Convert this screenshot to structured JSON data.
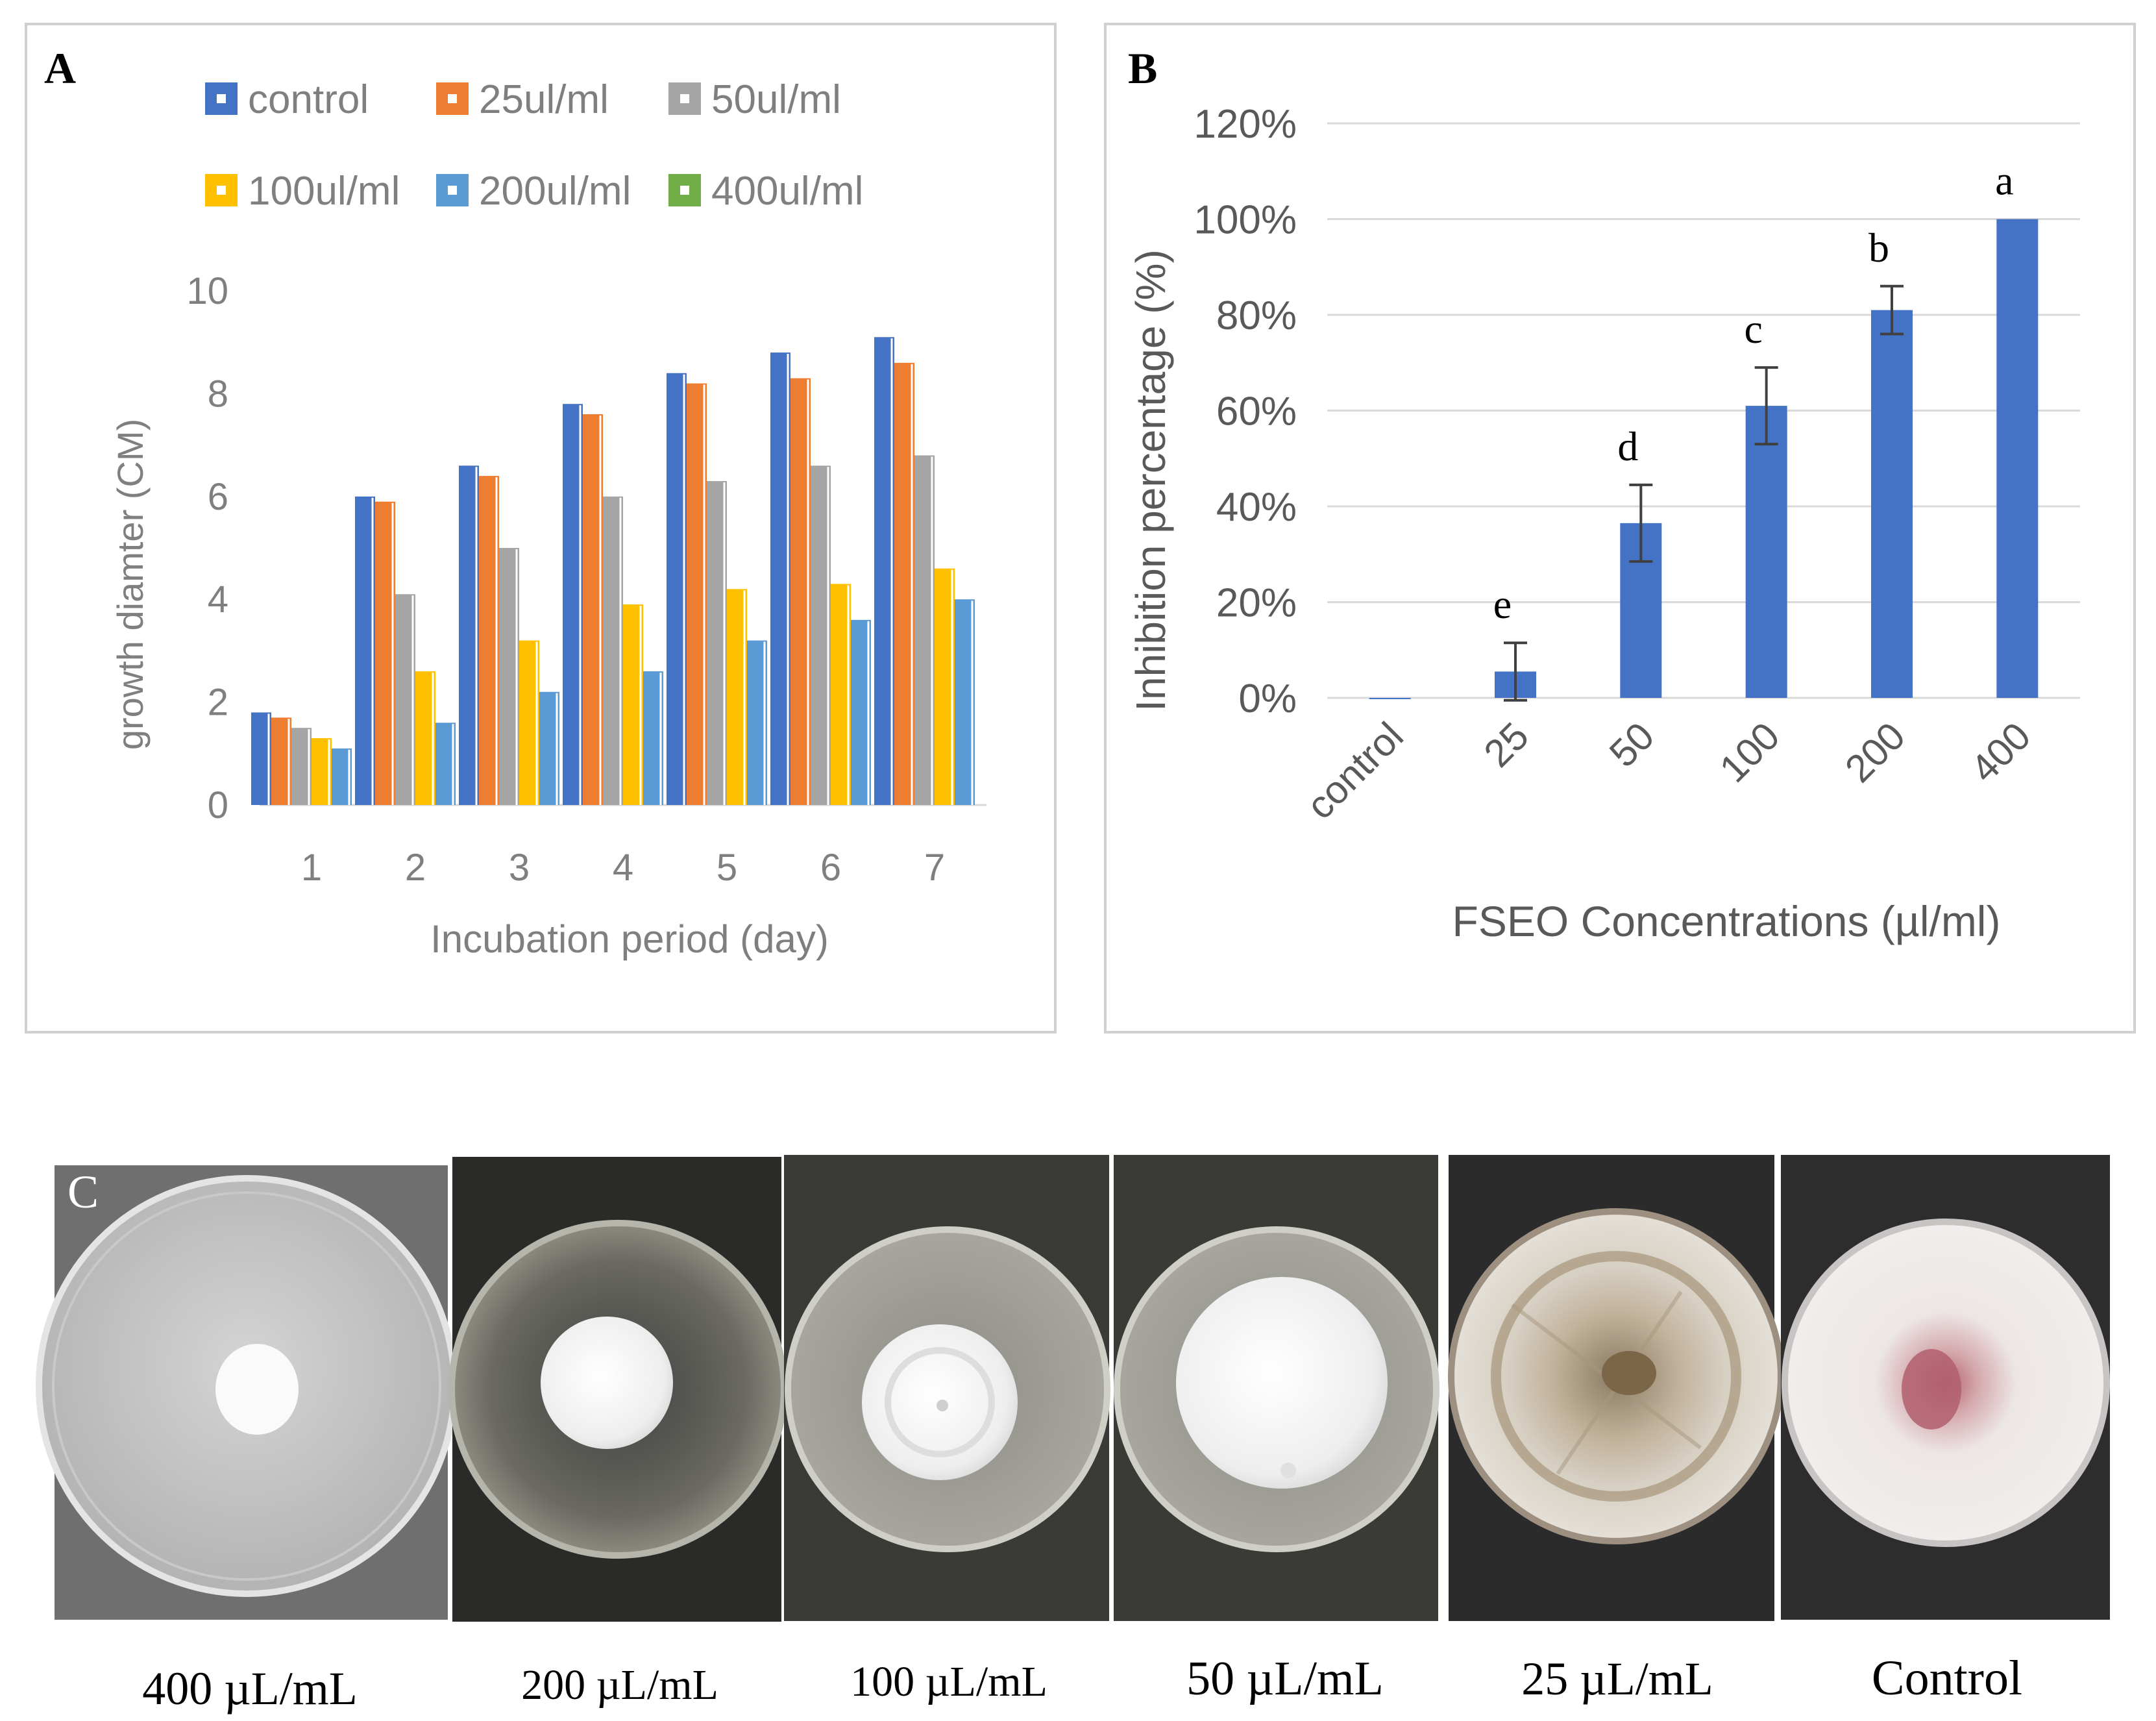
{
  "panel_a": {
    "letter": "A",
    "chart_data": {
      "type": "bar",
      "title": "",
      "xlabel": "Incubation period (day)",
      "ylabel": "growth diamter (CM)",
      "categories": [
        "1",
        "2",
        "3",
        "4",
        "5",
        "6",
        "7"
      ],
      "yticks": [
        "0",
        "2",
        "4",
        "6",
        "8",
        "10"
      ],
      "ylim": [
        0,
        10
      ],
      "legend_position": "top",
      "series": [
        {
          "name": "control",
          "color": "#4472C4",
          "values": [
            1.8,
            6.0,
            6.6,
            7.8,
            8.4,
            8.8,
            9.1
          ]
        },
        {
          "name": "25ul/ml",
          "color": "#ED7D31",
          "values": [
            1.7,
            5.9,
            6.4,
            7.6,
            8.2,
            8.3,
            8.6
          ]
        },
        {
          "name": "50ul/ml",
          "color": "#A5A5A5",
          "values": [
            1.5,
            4.1,
            5.0,
            6.0,
            6.3,
            6.6,
            6.8
          ]
        },
        {
          "name": "100ul/ml",
          "color": "#FFC000",
          "values": [
            1.3,
            2.6,
            3.2,
            3.9,
            4.2,
            4.3,
            4.6
          ]
        },
        {
          "name": "200ul/ml",
          "color": "#5B9BD5",
          "values": [
            1.1,
            1.6,
            2.2,
            2.6,
            3.2,
            3.6,
            4.0
          ]
        },
        {
          "name": "400ul/ml",
          "color": "#70AD47",
          "values": [
            0,
            0,
            0,
            0,
            0,
            0,
            0
          ]
        }
      ]
    }
  },
  "panel_b": {
    "letter": "B",
    "chart_data": {
      "type": "bar",
      "title": "",
      "xlabel": "FSEO Concentrations (µl/ml)",
      "ylabel": "Inhibition percentage (%)",
      "categories": [
        "control",
        "25",
        "50",
        "100",
        "200",
        "400"
      ],
      "yticks": [
        "0%",
        "20%",
        "40%",
        "60%",
        "80%",
        "100%",
        "120%"
      ],
      "ylim": [
        0,
        120
      ],
      "bar_color": "#4472C4",
      "values": [
        0,
        5.5,
        36.5,
        61,
        81,
        100
      ],
      "errors": [
        0,
        6,
        8,
        8,
        5,
        0
      ],
      "significance_letters": [
        "",
        "e",
        "d",
        "c",
        "b",
        "a"
      ]
    }
  },
  "panel_c": {
    "letter": "C",
    "plates": [
      {
        "label": "400 µL/mL",
        "style": "small-colony"
      },
      {
        "label": "200 µL/mL",
        "style": "medium-colony"
      },
      {
        "label": "100 µL/mL",
        "style": "ringed-colony"
      },
      {
        "label": "50 µL/mL",
        "style": "large-colony"
      },
      {
        "label": "25 µL/mL",
        "style": "full-colony"
      },
      {
        "label": "Control",
        "style": "full-colony-pink"
      }
    ]
  }
}
